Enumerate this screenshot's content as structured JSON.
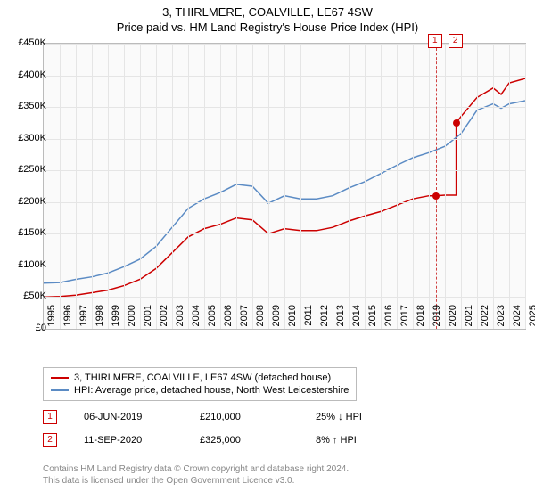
{
  "title": "3, THIRLMERE, COALVILLE, LE67 4SW",
  "subtitle": "Price paid vs. HM Land Registry's House Price Index (HPI)",
  "chart": {
    "type": "line",
    "background_color": "#fafafa",
    "grid_color": "#e5e5e5",
    "border_color": "#bbbbbb",
    "ylim": [
      0,
      450000
    ],
    "ytick_step": 50000,
    "yticks": [
      "£0",
      "£50K",
      "£100K",
      "£150K",
      "£200K",
      "£250K",
      "£300K",
      "£350K",
      "£400K",
      "£450K"
    ],
    "xlim": [
      1995,
      2025
    ],
    "xticks": [
      "1995",
      "1996",
      "1997",
      "1998",
      "1999",
      "2000",
      "2001",
      "2002",
      "2003",
      "2004",
      "2005",
      "2006",
      "2007",
      "2008",
      "2009",
      "2010",
      "2011",
      "2012",
      "2013",
      "2014",
      "2015",
      "2016",
      "2017",
      "2018",
      "2019",
      "2020",
      "2021",
      "2022",
      "2023",
      "2024",
      "2025"
    ],
    "label_fontsize": 11,
    "series": [
      {
        "name": "red",
        "color": "#cc0000",
        "stroke_width": 1.5,
        "data": [
          [
            1995,
            50000
          ],
          [
            1996,
            51000
          ],
          [
            1997,
            53000
          ],
          [
            1998,
            57000
          ],
          [
            1999,
            61000
          ],
          [
            2000,
            68000
          ],
          [
            2001,
            78000
          ],
          [
            2002,
            95000
          ],
          [
            2003,
            120000
          ],
          [
            2004,
            145000
          ],
          [
            2005,
            158000
          ],
          [
            2006,
            165000
          ],
          [
            2007,
            175000
          ],
          [
            2008,
            172000
          ],
          [
            2009,
            150000
          ],
          [
            2010,
            158000
          ],
          [
            2011,
            155000
          ],
          [
            2012,
            155000
          ],
          [
            2013,
            160000
          ],
          [
            2014,
            170000
          ],
          [
            2015,
            178000
          ],
          [
            2016,
            185000
          ],
          [
            2017,
            195000
          ],
          [
            2018,
            205000
          ],
          [
            2019,
            210000
          ],
          [
            2019.43,
            210000
          ],
          [
            2020,
            211000
          ],
          [
            2020.7,
            211000
          ],
          [
            2020.7,
            325000
          ],
          [
            2021,
            335000
          ],
          [
            2022,
            365000
          ],
          [
            2023,
            380000
          ],
          [
            2023.5,
            370000
          ],
          [
            2024,
            388000
          ],
          [
            2025,
            395000
          ]
        ]
      },
      {
        "name": "blue",
        "color": "#5b8bc4",
        "stroke_width": 1.5,
        "data": [
          [
            1995,
            72000
          ],
          [
            1996,
            73000
          ],
          [
            1997,
            78000
          ],
          [
            1998,
            82000
          ],
          [
            1999,
            88000
          ],
          [
            2000,
            98000
          ],
          [
            2001,
            110000
          ],
          [
            2002,
            130000
          ],
          [
            2003,
            160000
          ],
          [
            2004,
            190000
          ],
          [
            2005,
            205000
          ],
          [
            2006,
            215000
          ],
          [
            2007,
            228000
          ],
          [
            2008,
            225000
          ],
          [
            2009,
            198000
          ],
          [
            2010,
            210000
          ],
          [
            2011,
            205000
          ],
          [
            2012,
            205000
          ],
          [
            2013,
            210000
          ],
          [
            2014,
            222000
          ],
          [
            2015,
            232000
          ],
          [
            2016,
            245000
          ],
          [
            2017,
            258000
          ],
          [
            2018,
            270000
          ],
          [
            2019,
            278000
          ],
          [
            2020,
            288000
          ],
          [
            2021,
            308000
          ],
          [
            2022,
            345000
          ],
          [
            2023,
            355000
          ],
          [
            2023.5,
            348000
          ],
          [
            2024,
            355000
          ],
          [
            2025,
            360000
          ]
        ]
      }
    ],
    "markers": [
      {
        "id": "1",
        "label": "1",
        "x": 2019.43,
        "y": 210000,
        "dot_color": "#cc0000"
      },
      {
        "id": "2",
        "label": "2",
        "x": 2020.7,
        "y": 325000,
        "dot_color": "#cc0000"
      }
    ],
    "marker_line_color": "#d04040"
  },
  "legend": {
    "items": [
      {
        "color": "#cc0000",
        "label": "3, THIRLMERE, COALVILLE, LE67 4SW (detached house)"
      },
      {
        "color": "#5b8bc4",
        "label": "HPI: Average price, detached house, North West Leicestershire"
      }
    ]
  },
  "annotations": [
    {
      "marker": "1",
      "date": "06-JUN-2019",
      "price": "£210,000",
      "pct": "25%",
      "arrow": "↓",
      "vs": "HPI"
    },
    {
      "marker": "2",
      "date": "11-SEP-2020",
      "price": "£325,000",
      "pct": "8%",
      "arrow": "↑",
      "vs": "HPI"
    }
  ],
  "footer": {
    "line1": "Contains HM Land Registry data © Crown copyright and database right 2024.",
    "line2": "This data is licensed under the Open Government Licence v3.0."
  }
}
